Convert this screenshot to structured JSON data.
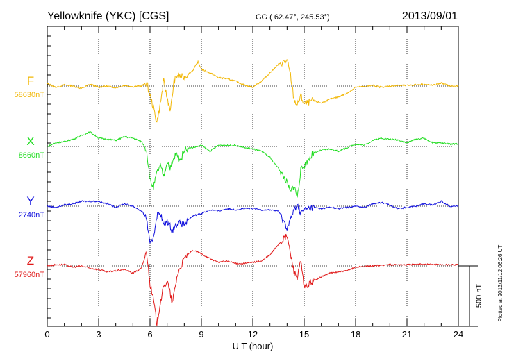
{
  "header": {
    "station": "Yellowknife (YKC)  [CGS]",
    "coords": "GG ( 62.47°, 245.53°)",
    "date": "2013/09/01"
  },
  "side_note": "Plotted at 2013/11/12 06:26 UT",
  "scale_bar": {
    "label": "500 nT",
    "value_nT": 500
  },
  "chart_data": {
    "type": "line",
    "xlabel": "U T (hour)",
    "xlim": [
      0,
      24
    ],
    "x_ticks": [
      0,
      3,
      6,
      9,
      12,
      15,
      18,
      21,
      24
    ],
    "x_tick_labels": [
      "0",
      "3",
      "6",
      "9",
      "12",
      "15",
      "18",
      "21",
      "24"
    ],
    "grid": true,
    "series": [
      {
        "name": "F",
        "baseline_label": "58630nT",
        "baseline_nT": 58630,
        "color": "#f2b705",
        "points": [
          [
            0,
            20
          ],
          [
            0.5,
            -10
          ],
          [
            1,
            10
          ],
          [
            1.5,
            0
          ],
          [
            2,
            -20
          ],
          [
            2.5,
            15
          ],
          [
            3,
            -10
          ],
          [
            3.5,
            0
          ],
          [
            4,
            -15
          ],
          [
            4.5,
            5
          ],
          [
            5,
            -5
          ],
          [
            5.5,
            0
          ],
          [
            5.8,
            30
          ],
          [
            6,
            -80
          ],
          [
            6.2,
            -180
          ],
          [
            6.4,
            -300
          ],
          [
            6.6,
            -150
          ],
          [
            6.8,
            40
          ],
          [
            7,
            -100
          ],
          [
            7.2,
            -200
          ],
          [
            7.4,
            40
          ],
          [
            7.6,
            90
          ],
          [
            8,
            70
          ],
          [
            8.5,
            130
          ],
          [
            8.8,
            200
          ],
          [
            9,
            140
          ],
          [
            9.5,
            110
          ],
          [
            10,
            70
          ],
          [
            10.5,
            60
          ],
          [
            11,
            40
          ],
          [
            11.5,
            10
          ],
          [
            12,
            -10
          ],
          [
            12.5,
            40
          ],
          [
            13,
            110
          ],
          [
            13.5,
            180
          ],
          [
            14,
            210
          ],
          [
            14.2,
            90
          ],
          [
            14.4,
            -110
          ],
          [
            14.6,
            -160
          ],
          [
            14.8,
            -80
          ],
          [
            15,
            -150
          ],
          [
            15.5,
            -120
          ],
          [
            16,
            -140
          ],
          [
            16.5,
            -110
          ],
          [
            17,
            -90
          ],
          [
            17.5,
            -60
          ],
          [
            18,
            -10
          ],
          [
            18.5,
            -5
          ],
          [
            19,
            5
          ],
          [
            19.5,
            -10
          ],
          [
            20,
            0
          ],
          [
            20.5,
            5
          ],
          [
            21,
            5
          ],
          [
            21.5,
            10
          ],
          [
            22,
            15
          ],
          [
            22.5,
            5
          ],
          [
            23,
            25
          ],
          [
            23.5,
            0
          ],
          [
            24,
            0
          ]
        ]
      },
      {
        "name": "X",
        "baseline_label": "8660nT",
        "baseline_nT": 8660,
        "color": "#22dd22",
        "points": [
          [
            0,
            0
          ],
          [
            0.5,
            30
          ],
          [
            1,
            40
          ],
          [
            1.5,
            60
          ],
          [
            2,
            90
          ],
          [
            2.5,
            120
          ],
          [
            3,
            70
          ],
          [
            3.5,
            60
          ],
          [
            4,
            50
          ],
          [
            4.5,
            80
          ],
          [
            5,
            70
          ],
          [
            5.5,
            40
          ],
          [
            5.8,
            -30
          ],
          [
            6,
            -280
          ],
          [
            6.2,
            -340
          ],
          [
            6.4,
            -220
          ],
          [
            6.6,
            -160
          ],
          [
            6.8,
            -250
          ],
          [
            7,
            -120
          ],
          [
            7.2,
            -180
          ],
          [
            7.5,
            -60
          ],
          [
            7.8,
            -110
          ],
          [
            8,
            -20
          ],
          [
            8.5,
            -10
          ],
          [
            9,
            10
          ],
          [
            9.5,
            -40
          ],
          [
            10,
            10
          ],
          [
            10.5,
            10
          ],
          [
            11,
            10
          ],
          [
            11.5,
            -10
          ],
          [
            12,
            -20
          ],
          [
            12.5,
            -40
          ],
          [
            13,
            -90
          ],
          [
            13.5,
            -180
          ],
          [
            14,
            -300
          ],
          [
            14.2,
            -380
          ],
          [
            14.4,
            -320
          ],
          [
            14.6,
            -420
          ],
          [
            14.8,
            -200
          ],
          [
            15,
            -160
          ],
          [
            15.5,
            -60
          ],
          [
            16,
            -30
          ],
          [
            16.5,
            -20
          ],
          [
            17,
            -40
          ],
          [
            17.5,
            -10
          ],
          [
            18,
            20
          ],
          [
            18.5,
            10
          ],
          [
            19,
            50
          ],
          [
            19.5,
            70
          ],
          [
            20,
            60
          ],
          [
            20.5,
            55
          ],
          [
            21,
            30
          ],
          [
            21.5,
            60
          ],
          [
            22,
            70
          ],
          [
            22.5,
            30
          ],
          [
            23,
            30
          ],
          [
            23.5,
            20
          ],
          [
            24,
            20
          ]
        ]
      },
      {
        "name": "Y",
        "baseline_label": "2740nT",
        "baseline_nT": 2740,
        "color": "#1010dd",
        "points": [
          [
            0,
            0
          ],
          [
            0.5,
            -10
          ],
          [
            1,
            10
          ],
          [
            1.5,
            20
          ],
          [
            2,
            40
          ],
          [
            2.5,
            40
          ],
          [
            3,
            40
          ],
          [
            3.5,
            20
          ],
          [
            4,
            -10
          ],
          [
            4.5,
            20
          ],
          [
            5,
            0
          ],
          [
            5.5,
            -40
          ],
          [
            5.8,
            -100
          ],
          [
            6,
            -330
          ],
          [
            6.2,
            -250
          ],
          [
            6.4,
            -80
          ],
          [
            6.6,
            -50
          ],
          [
            6.8,
            -160
          ],
          [
            7,
            -120
          ],
          [
            7.3,
            -200
          ],
          [
            7.6,
            -140
          ],
          [
            8,
            -150
          ],
          [
            8.5,
            -80
          ],
          [
            9,
            -60
          ],
          [
            9.5,
            -30
          ],
          [
            10,
            -40
          ],
          [
            10.5,
            -20
          ],
          [
            11,
            -30
          ],
          [
            11.5,
            -20
          ],
          [
            12,
            -20
          ],
          [
            12.5,
            -30
          ],
          [
            13,
            -30
          ],
          [
            13.5,
            -40
          ],
          [
            14,
            -180
          ],
          [
            14.2,
            -110
          ],
          [
            14.4,
            -40
          ],
          [
            14.6,
            20
          ],
          [
            14.8,
            -60
          ],
          [
            15,
            -30
          ],
          [
            15.5,
            -10
          ],
          [
            16,
            -20
          ],
          [
            16.5,
            -10
          ],
          [
            17,
            -20
          ],
          [
            17.5,
            -10
          ],
          [
            18,
            0
          ],
          [
            18.5,
            -10
          ],
          [
            19,
            20
          ],
          [
            19.5,
            30
          ],
          [
            20,
            10
          ],
          [
            20.5,
            -20
          ],
          [
            21,
            -10
          ],
          [
            21.5,
            0
          ],
          [
            22,
            20
          ],
          [
            22.5,
            10
          ],
          [
            23,
            40
          ],
          [
            23.5,
            0
          ],
          [
            24,
            0
          ]
        ]
      },
      {
        "name": "Z",
        "baseline_label": "57960nT",
        "baseline_nT": 57960,
        "color": "#e01818",
        "points": [
          [
            0,
            0
          ],
          [
            0.5,
            10
          ],
          [
            1,
            10
          ],
          [
            1.5,
            -10
          ],
          [
            2,
            0
          ],
          [
            2.5,
            -20
          ],
          [
            3,
            -30
          ],
          [
            3.5,
            -50
          ],
          [
            4,
            -40
          ],
          [
            4.5,
            -30
          ],
          [
            5,
            -60
          ],
          [
            5.5,
            -20
          ],
          [
            5.8,
            120
          ],
          [
            6,
            -150
          ],
          [
            6.2,
            -280
          ],
          [
            6.4,
            -480
          ],
          [
            6.6,
            -300
          ],
          [
            6.8,
            -180
          ],
          [
            7,
            -120
          ],
          [
            7.3,
            -310
          ],
          [
            7.6,
            -70
          ],
          [
            8,
            60
          ],
          [
            8.5,
            130
          ],
          [
            9,
            100
          ],
          [
            9.5,
            60
          ],
          [
            10,
            30
          ],
          [
            10.5,
            40
          ],
          [
            11,
            20
          ],
          [
            11.5,
            20
          ],
          [
            12,
            30
          ],
          [
            12.5,
            40
          ],
          [
            13,
            90
          ],
          [
            13.5,
            180
          ],
          [
            14,
            250
          ],
          [
            14.2,
            100
          ],
          [
            14.4,
            -40
          ],
          [
            14.6,
            -100
          ],
          [
            14.8,
            40
          ],
          [
            15,
            -180
          ],
          [
            15.5,
            -130
          ],
          [
            16,
            -90
          ],
          [
            16.5,
            -60
          ],
          [
            17,
            -50
          ],
          [
            17.5,
            -40
          ],
          [
            18,
            -10
          ],
          [
            18.5,
            -5
          ],
          [
            19,
            0
          ],
          [
            19.5,
            5
          ],
          [
            20,
            10
          ],
          [
            21,
            10
          ],
          [
            22,
            15
          ],
          [
            23,
            10
          ],
          [
            24,
            10
          ]
        ]
      }
    ]
  }
}
